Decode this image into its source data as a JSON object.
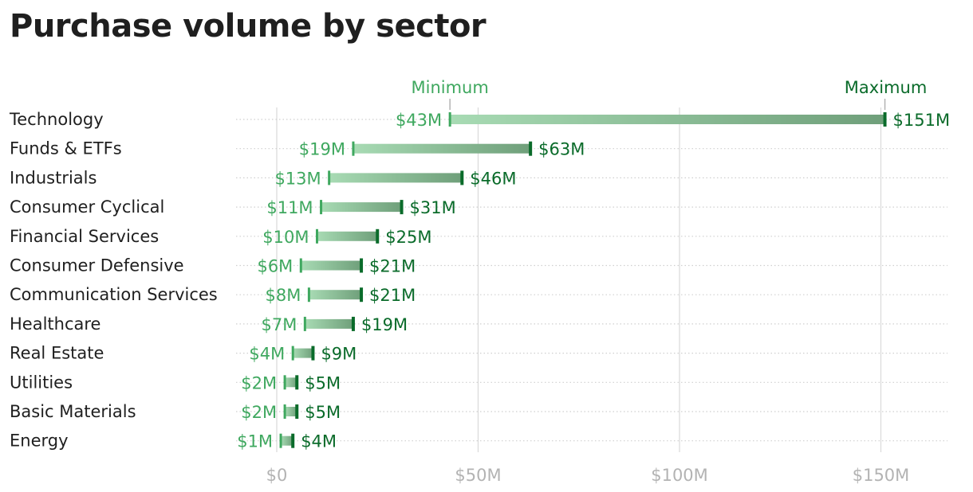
{
  "chart_data": {
    "type": "dumbbell",
    "title": "Purchase volume by sector",
    "xlabel": "",
    "ylabel": "",
    "xlim": [
      0,
      165
    ],
    "x_ticks": [
      0,
      50,
      100,
      150
    ],
    "x_tick_labels": [
      "$0",
      "$50M",
      "$100M",
      "$150M"
    ],
    "grid": "vertical",
    "legend": {
      "min_label": "Minimum",
      "max_label": "Maximum",
      "placement": "top"
    },
    "colors": {
      "min": "#3fa85f",
      "max": "#0a6b2a",
      "bar_light": "#a8dbb4",
      "bar_dark": "#6f9f7a",
      "grid": "#d9d9d9",
      "tick": "#b3b3b3",
      "text": "#1f1f1f"
    },
    "categories": [
      "Technology",
      "Funds & ETFs",
      "Industrials",
      "Consumer Cyclical",
      "Financial Services",
      "Consumer Defensive",
      "Communication Services",
      "Healthcare",
      "Real Estate",
      "Utilities",
      "Basic Materials",
      "Energy"
    ],
    "series": [
      {
        "name": "Minimum",
        "values": [
          43,
          19,
          13,
          11,
          10,
          6,
          8,
          7,
          4,
          2,
          2,
          1
        ],
        "labels": [
          "$43M",
          "$19M",
          "$13M",
          "$11M",
          "$10M",
          "$6M",
          "$8M",
          "$7M",
          "$4M",
          "$2M",
          "$2M",
          "$1M"
        ]
      },
      {
        "name": "Maximum",
        "values": [
          151,
          63,
          46,
          31,
          25,
          21,
          21,
          19,
          9,
          5,
          5,
          4
        ],
        "labels": [
          "$151M",
          "$63M",
          "$46M",
          "$31M",
          "$25M",
          "$21M",
          "$21M",
          "$19M",
          "$9M",
          "$5M",
          "$5M",
          "$4M"
        ]
      }
    ]
  }
}
